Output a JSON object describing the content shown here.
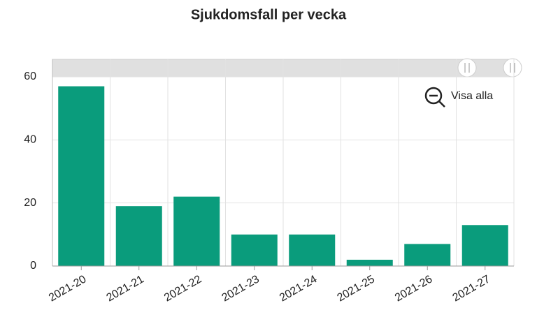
{
  "chart_data": {
    "type": "bar",
    "title": "Sjukdomsfall per vecka",
    "categories": [
      "2021-20",
      "2021-21",
      "2021-22",
      "2021-23",
      "2021-24",
      "2021-25",
      "2021-26",
      "2021-27"
    ],
    "values": [
      57,
      19,
      22,
      10,
      10,
      2,
      7,
      13
    ],
    "color": "#0a9c7c",
    "ylim": [
      0,
      60
    ],
    "yticks": [
      0,
      20,
      40,
      60
    ],
    "grid": true,
    "button_label": "Visa alla"
  }
}
